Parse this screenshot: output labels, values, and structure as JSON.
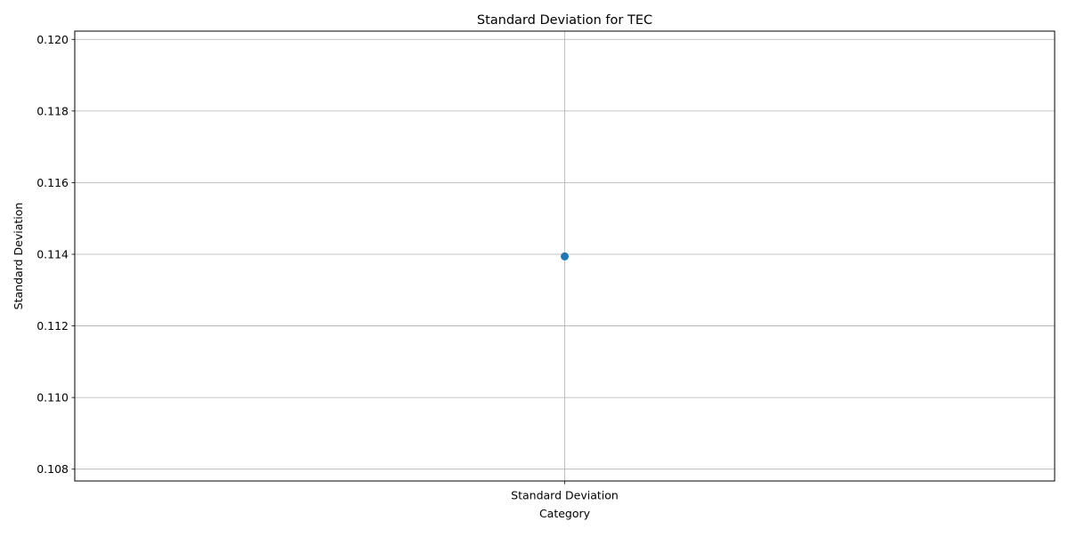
{
  "chart_data": {
    "type": "line",
    "title": "Standard Deviation for TEC",
    "xlabel": "Category",
    "ylabel": "Standard Deviation",
    "categories": [
      "Standard Deviation"
    ],
    "series": [
      {
        "values": [
          0.11394
        ],
        "color": "#1f77b4",
        "marker": "circle"
      }
    ],
    "ylim": [
      0.10767,
      0.12023
    ],
    "yticks": [
      "0.108",
      "0.110",
      "0.112",
      "0.114",
      "0.116",
      "0.118",
      "0.120"
    ],
    "grid": true
  }
}
